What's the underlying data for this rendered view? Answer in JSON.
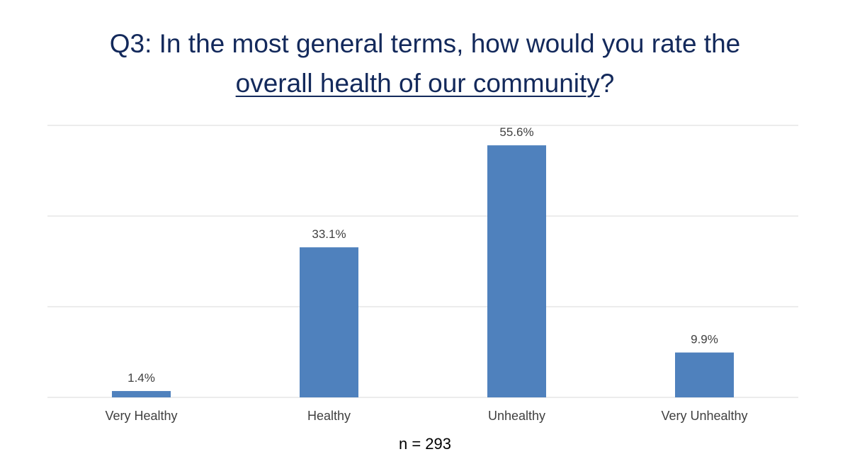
{
  "chart_data": {
    "type": "bar",
    "title_line1": "Q3: In the most general terms, how would you rate the",
    "title_underlined": "overall health of our community",
    "title_end": "?",
    "categories": [
      "Very Healthy",
      "Healthy",
      "Unhealthy",
      "Very Unhealthy"
    ],
    "values": [
      1.4,
      33.1,
      55.6,
      9.9
    ],
    "data_labels": [
      "1.4%",
      "33.1%",
      "55.6%",
      "9.9%"
    ],
    "ylim": [
      0,
      60
    ],
    "gridlines": [
      0,
      20,
      40,
      60
    ],
    "grid": true,
    "legend": "none",
    "xlabel": "",
    "ylabel": "",
    "note": "n = 293",
    "bar_color": "#4f81bd",
    "title_color": "#13295b"
  }
}
